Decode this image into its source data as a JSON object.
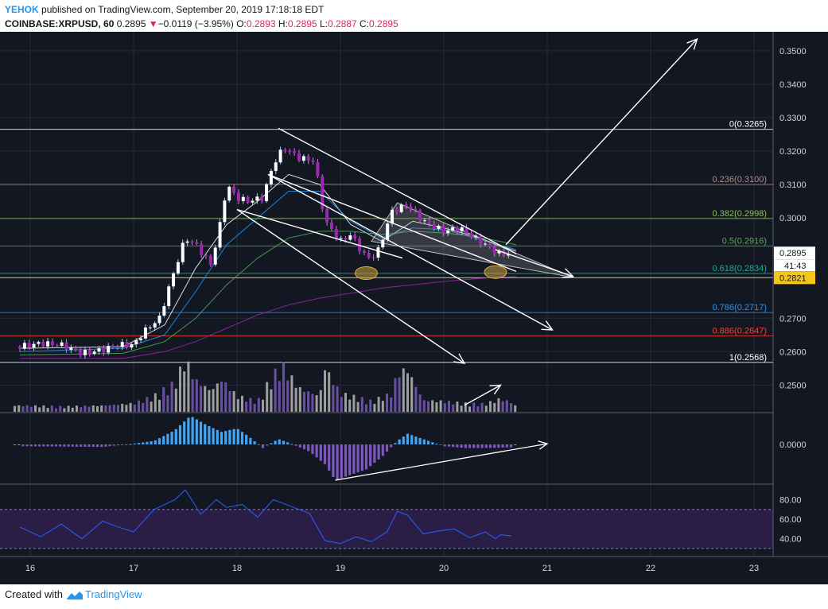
{
  "header": {
    "publisher": "YEHOK",
    "published_text": "published on TradingView.com, September 20, 2019 17:18:18 EDT",
    "symbol": "COINBASE:XRPUSD, 60",
    "last": "0.2895",
    "change": "−0.0119 (−3.95%)",
    "o_label": "O:",
    "o_value": "0.2893",
    "h_label": "H:",
    "h_value": "0.2895",
    "l_label": "L:",
    "l_value": "0.2887",
    "c_label": "C:",
    "c_value": "0.2895"
  },
  "footer": {
    "created_with": "Created with",
    "brand": "TradingView"
  },
  "colors": {
    "background": "#131722",
    "grid": "#242a38",
    "bull": "#ffffff",
    "bear": "#9c27b0",
    "fib_0": "#ffffff",
    "fib_0236": "#b08c8c",
    "fib_0382": "#8bc34a",
    "fib_05": "#4caf50",
    "fib_0618": "#26a69a",
    "fib_0786": "#2196f3",
    "fib_0886": "#f44336",
    "fib_1": "#ffffff",
    "price_line": "#f5c518",
    "current_price": "#ffffff",
    "macd_pos": "#42a5f5",
    "macd_neg": "#7e57c2",
    "rsi_band": "#2a1e47",
    "rsi_line": "#2962ff"
  },
  "chart_data": {
    "type": "candlestick",
    "x_ticks": [
      "16",
      "17",
      "18",
      "19",
      "20",
      "21",
      "22",
      "23"
    ],
    "price_axis": {
      "ylim": [
        0.242,
        0.354
      ],
      "ticks": [
        "0.3500",
        "0.3400",
        "0.3300",
        "0.3200",
        "0.3100",
        "0.3000",
        "0.2700",
        "0.2600",
        "0.2500"
      ]
    },
    "current_price": {
      "value": 0.2895,
      "label": "0.2895",
      "countdown": "41:43"
    },
    "horizontal_line": {
      "value": 0.2821,
      "label": "0.2821"
    },
    "fib_levels": [
      {
        "level": "0",
        "value": 0.3265,
        "label": "0(0.3265)"
      },
      {
        "level": "0.236",
        "value": 0.31,
        "label": "0.236(0.3100)"
      },
      {
        "level": "0.382",
        "value": 0.2998,
        "label": "0.382(0.2998)"
      },
      {
        "level": "0.5",
        "value": 0.2916,
        "label": "0.5(0.2916)"
      },
      {
        "level": "0.618",
        "value": 0.2834,
        "label": "0.618(0.2834)"
      },
      {
        "level": "0.786",
        "value": 0.2717,
        "label": "0.786(0.2717)"
      },
      {
        "level": "0.886",
        "value": 0.2647,
        "label": "0.886(0.2647)"
      },
      {
        "level": "1",
        "value": 0.2568,
        "label": "1(0.2568)"
      }
    ],
    "price_path": [
      [
        15.9,
        0.2615
      ],
      [
        16.1,
        0.2625
      ],
      [
        16.3,
        0.262
      ],
      [
        16.5,
        0.2595
      ],
      [
        16.7,
        0.2605
      ],
      [
        16.85,
        0.262
      ],
      [
        17.0,
        0.262
      ],
      [
        17.1,
        0.266
      ],
      [
        17.25,
        0.27
      ],
      [
        17.35,
        0.28
      ],
      [
        17.5,
        0.294
      ],
      [
        17.6,
        0.292
      ],
      [
        17.75,
        0.286
      ],
      [
        17.85,
        0.3
      ],
      [
        17.9,
        0.31
      ],
      [
        18.0,
        0.306
      ],
      [
        18.1,
        0.305
      ],
      [
        18.25,
        0.306
      ],
      [
        18.35,
        0.316
      ],
      [
        18.45,
        0.321
      ],
      [
        18.6,
        0.318
      ],
      [
        18.75,
        0.317
      ],
      [
        18.85,
        0.299
      ],
      [
        19.0,
        0.293
      ],
      [
        19.1,
        0.295
      ],
      [
        19.25,
        0.288
      ],
      [
        19.35,
        0.289
      ],
      [
        19.5,
        0.302
      ],
      [
        19.65,
        0.304
      ],
      [
        19.8,
        0.299
      ],
      [
        20.0,
        0.296
      ],
      [
        20.15,
        0.297
      ],
      [
        20.3,
        0.294
      ],
      [
        20.45,
        0.291
      ],
      [
        20.55,
        0.289
      ],
      [
        20.65,
        0.2895
      ]
    ],
    "trendlines": [
      {
        "from": [
          18.4,
          0.3268
        ],
        "to": [
          20.7,
          0.2893
        ]
      },
      {
        "from": [
          18.3,
          0.313
        ],
        "to": [
          20.7,
          0.284
        ]
      },
      {
        "from": [
          18.0,
          0.3025
        ],
        "to": [
          19.6,
          0.288
        ]
      }
    ],
    "arrows": [
      {
        "from": [
          18.0,
          0.3025
        ],
        "to": [
          20.2,
          0.2565
        ]
      },
      {
        "from": [
          18.3,
          0.313
        ],
        "to": [
          21.05,
          0.2665
        ]
      },
      {
        "from": [
          20.6,
          0.292
        ],
        "to": [
          22.45,
          0.3535
        ]
      },
      {
        "from": [
          20.5,
          0.2905
        ],
        "to": [
          21.25,
          0.2825
        ]
      }
    ],
    "triangle": [
      [
        19.55,
        0.3045
      ],
      [
        19.3,
        0.293
      ],
      [
        21.25,
        0.2822
      ]
    ],
    "ellipses": [
      [
        19.25,
        0.2835
      ],
      [
        20.5,
        0.2838
      ]
    ],
    "moving_averages": [
      {
        "name": "",
        "color": "#ffffff",
        "points": [
          [
            15.9,
            0.261
          ],
          [
            16.9,
            0.2615
          ],
          [
            17.3,
            0.268
          ],
          [
            17.6,
            0.285
          ],
          [
            17.9,
            0.298
          ],
          [
            18.2,
            0.305
          ],
          [
            18.5,
            0.313
          ],
          [
            18.8,
            0.31
          ],
          [
            19.1,
            0.298
          ],
          [
            19.4,
            0.293
          ],
          [
            19.7,
            0.299
          ],
          [
            20.0,
            0.297
          ],
          [
            20.3,
            0.2945
          ],
          [
            20.7,
            0.29
          ]
        ]
      },
      {
        "name": "",
        "color": "#2196f3",
        "points": [
          [
            15.9,
            0.26
          ],
          [
            16.9,
            0.261
          ],
          [
            17.3,
            0.265
          ],
          [
            17.6,
            0.278
          ],
          [
            17.9,
            0.292
          ],
          [
            18.2,
            0.3
          ],
          [
            18.5,
            0.308
          ],
          [
            18.8,
            0.308
          ],
          [
            19.1,
            0.299
          ],
          [
            19.4,
            0.294
          ],
          [
            19.7,
            0.297
          ],
          [
            20.0,
            0.2965
          ],
          [
            20.3,
            0.294
          ],
          [
            20.7,
            0.2905
          ]
        ]
      },
      {
        "name": "",
        "color": "#4caf50",
        "points": [
          [
            15.9,
            0.259
          ],
          [
            16.9,
            0.2595
          ],
          [
            17.3,
            0.263
          ],
          [
            17.6,
            0.27
          ],
          [
            17.9,
            0.28
          ],
          [
            18.2,
            0.288
          ],
          [
            18.5,
            0.294
          ],
          [
            18.8,
            0.296
          ],
          [
            19.1,
            0.296
          ],
          [
            19.4,
            0.295
          ],
          [
            19.7,
            0.296
          ],
          [
            20.0,
            0.2955
          ],
          [
            20.3,
            0.2945
          ],
          [
            20.7,
            0.292
          ]
        ]
      },
      {
        "name": "",
        "color": "#9c27b0",
        "points": [
          [
            15.9,
            0.258
          ],
          [
            16.9,
            0.258
          ],
          [
            17.3,
            0.26
          ],
          [
            17.6,
            0.263
          ],
          [
            17.9,
            0.267
          ],
          [
            18.2,
            0.271
          ],
          [
            18.5,
            0.274
          ],
          [
            18.8,
            0.276
          ],
          [
            19.1,
            0.2775
          ],
          [
            19.4,
            0.279
          ],
          [
            19.7,
            0.28
          ],
          [
            20.0,
            0.281
          ],
          [
            20.3,
            0.2818
          ],
          [
            20.7,
            0.2825
          ]
        ]
      }
    ],
    "volume_zero_value": 0.242,
    "volume_max": 1.0,
    "volume": [
      [
        15.9,
        0.12
      ],
      [
        16.3,
        0.1
      ],
      [
        16.7,
        0.12
      ],
      [
        17.0,
        0.16
      ],
      [
        17.2,
        0.3
      ],
      [
        17.4,
        0.55
      ],
      [
        17.5,
        1.0
      ],
      [
        17.6,
        0.6
      ],
      [
        17.75,
        0.4
      ],
      [
        17.85,
        0.62
      ],
      [
        18.0,
        0.3
      ],
      [
        18.2,
        0.2
      ],
      [
        18.35,
        0.7
      ],
      [
        18.45,
        0.85
      ],
      [
        18.6,
        0.45
      ],
      [
        18.8,
        0.3
      ],
      [
        18.85,
        0.85
      ],
      [
        19.0,
        0.35
      ],
      [
        19.15,
        0.28
      ],
      [
        19.3,
        0.2
      ],
      [
        19.5,
        0.35
      ],
      [
        19.55,
        0.75
      ],
      [
        19.65,
        0.8
      ],
      [
        19.8,
        0.22
      ],
      [
        20.0,
        0.2
      ],
      [
        20.2,
        0.16
      ],
      [
        20.4,
        0.15
      ],
      [
        20.55,
        0.25
      ],
      [
        20.65,
        0.18
      ]
    ],
    "volume_arrow": {
      "from": [
        20.2,
        0.244
      ],
      "to": [
        20.55,
        0.25
      ]
    },
    "macd": {
      "ylim": [
        -1,
        1
      ],
      "tick": "0.0000",
      "histogram": [
        [
          15.9,
          -0.05
        ],
        [
          16.3,
          -0.06
        ],
        [
          16.7,
          -0.07
        ],
        [
          17.0,
          0.02
        ],
        [
          17.2,
          0.1
        ],
        [
          17.4,
          0.4
        ],
        [
          17.55,
          0.8
        ],
        [
          17.7,
          0.55
        ],
        [
          17.85,
          0.35
        ],
        [
          18.0,
          0.45
        ],
        [
          18.1,
          0.25
        ],
        [
          18.25,
          -0.1
        ],
        [
          18.4,
          0.15
        ],
        [
          18.5,
          0.05
        ],
        [
          18.7,
          -0.2
        ],
        [
          18.85,
          -0.55
        ],
        [
          18.95,
          -1.0
        ],
        [
          19.1,
          -0.85
        ],
        [
          19.25,
          -0.7
        ],
        [
          19.4,
          -0.35
        ],
        [
          19.55,
          0.1
        ],
        [
          19.65,
          0.3
        ],
        [
          19.8,
          0.15
        ],
        [
          20.0,
          -0.05
        ],
        [
          20.2,
          -0.1
        ],
        [
          20.45,
          -0.1
        ],
        [
          20.65,
          -0.08
        ]
      ],
      "arrow": {
        "from": [
          18.95,
          -1.0
        ],
        "to": [
          21.0,
          0.02
        ]
      }
    },
    "rsi": {
      "ylim": [
        25,
        95
      ],
      "ticks": [
        "80.00",
        "60.00",
        "40.00"
      ],
      "band": [
        30,
        70
      ],
      "line": [
        [
          15.9,
          52
        ],
        [
          16.1,
          42
        ],
        [
          16.3,
          55
        ],
        [
          16.5,
          40
        ],
        [
          16.7,
          58
        ],
        [
          16.85,
          52
        ],
        [
          17.0,
          47
        ],
        [
          17.2,
          70
        ],
        [
          17.4,
          80
        ],
        [
          17.5,
          90
        ],
        [
          17.65,
          65
        ],
        [
          17.8,
          80
        ],
        [
          17.9,
          72
        ],
        [
          18.05,
          75
        ],
        [
          18.2,
          62
        ],
        [
          18.35,
          80
        ],
        [
          18.5,
          74
        ],
        [
          18.7,
          66
        ],
        [
          18.85,
          38
        ],
        [
          19.0,
          35
        ],
        [
          19.15,
          42
        ],
        [
          19.3,
          37
        ],
        [
          19.45,
          47
        ],
        [
          19.55,
          68
        ],
        [
          19.65,
          64
        ],
        [
          19.8,
          45
        ],
        [
          19.95,
          48
        ],
        [
          20.1,
          50
        ],
        [
          20.25,
          41
        ],
        [
          20.4,
          47
        ],
        [
          20.5,
          40
        ],
        [
          20.55,
          44
        ],
        [
          20.65,
          43
        ]
      ]
    }
  }
}
